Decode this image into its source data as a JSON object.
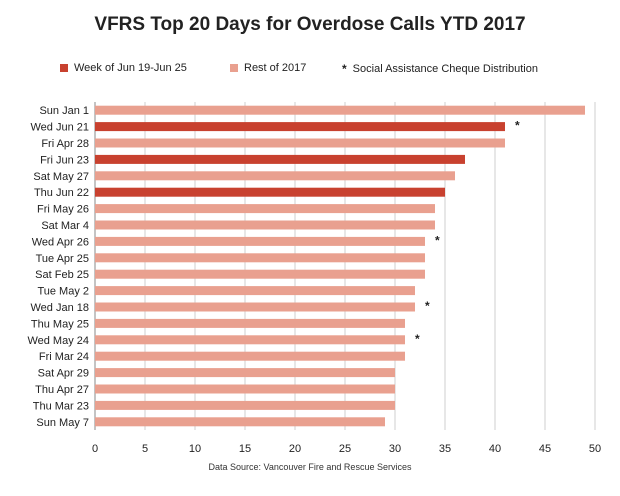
{
  "chart_data": {
    "type": "bar",
    "orientation": "horizontal",
    "title": "VFRS Top 20 Days for Overdose Calls YTD 2017",
    "xlim": [
      0,
      50
    ],
    "xticks": [
      0,
      5,
      10,
      15,
      20,
      25,
      30,
      35,
      40,
      45,
      50
    ],
    "grid": true,
    "legend_placement": "top",
    "legend": [
      {
        "label": "Week of Jun 19-Jun 25",
        "color": "#C8412F",
        "kind": "bar"
      },
      {
        "label": "Rest of 2017",
        "color": "#E9A08F",
        "kind": "bar"
      },
      {
        "label": "Social Assistance Cheque Distribution",
        "symbol": "*",
        "kind": "marker"
      }
    ],
    "categories": [
      "Sun Jan 1",
      "Wed Jun 21",
      "Fri Apr 28",
      "Fri Jun 23",
      "Sat May 27",
      "Thu Jun 22",
      "Fri May 26",
      "Sat Mar 4",
      "Wed Apr 26",
      "Tue Apr 25",
      "Sat Feb 25",
      "Tue May 2",
      "Wed Jan 18",
      "Thu May 25",
      "Wed May 24",
      "Fri Mar 24",
      "Sat Apr 29",
      "Thu Apr 27",
      "Thu Mar 23",
      "Sun May 7"
    ],
    "values": [
      49,
      41,
      41,
      37,
      36,
      35,
      34,
      34,
      33,
      33,
      33,
      32,
      32,
      31,
      31,
      31,
      30,
      30,
      30,
      29
    ],
    "group": [
      "rest",
      "week",
      "rest",
      "week",
      "rest",
      "week",
      "rest",
      "rest",
      "rest",
      "rest",
      "rest",
      "rest",
      "rest",
      "rest",
      "rest",
      "rest",
      "rest",
      "rest",
      "rest",
      "rest"
    ],
    "cheque_marker": [
      false,
      true,
      false,
      false,
      false,
      false,
      false,
      false,
      true,
      false,
      false,
      false,
      true,
      false,
      true,
      false,
      false,
      false,
      false,
      false
    ],
    "marker_symbol": "*",
    "source": "Data Source: Vancouver Fire and Rescue Services"
  },
  "colors": {
    "week": "#C8412F",
    "rest": "#E9A08F",
    "grid": "#CFCFCF",
    "axis": "#888888",
    "text": "#222222"
  }
}
